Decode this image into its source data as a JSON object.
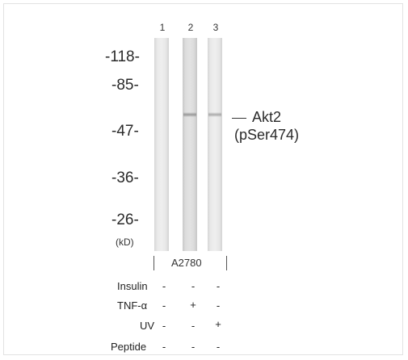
{
  "lanes": [
    {
      "number": "1",
      "condition_signs": [
        "-",
        "-",
        "-",
        "-"
      ]
    },
    {
      "number": "2",
      "condition_signs": [
        "-",
        "+",
        "-",
        "-"
      ]
    },
    {
      "number": "3",
      "condition_signs": [
        "-",
        "-",
        "+",
        "-"
      ]
    }
  ],
  "mw_markers": [
    "-118-",
    "-85-",
    "-47-",
    "-36-",
    "-26-"
  ],
  "mw_unit": "(kD)",
  "protein_label": {
    "name": "Akt2",
    "modification": "(pSer474)"
  },
  "cell_line": "A2780",
  "conditions": [
    "Insulin",
    "TNF-α",
    "UV",
    "Peptide"
  ],
  "band_lanes": [
    "2",
    "3"
  ]
}
